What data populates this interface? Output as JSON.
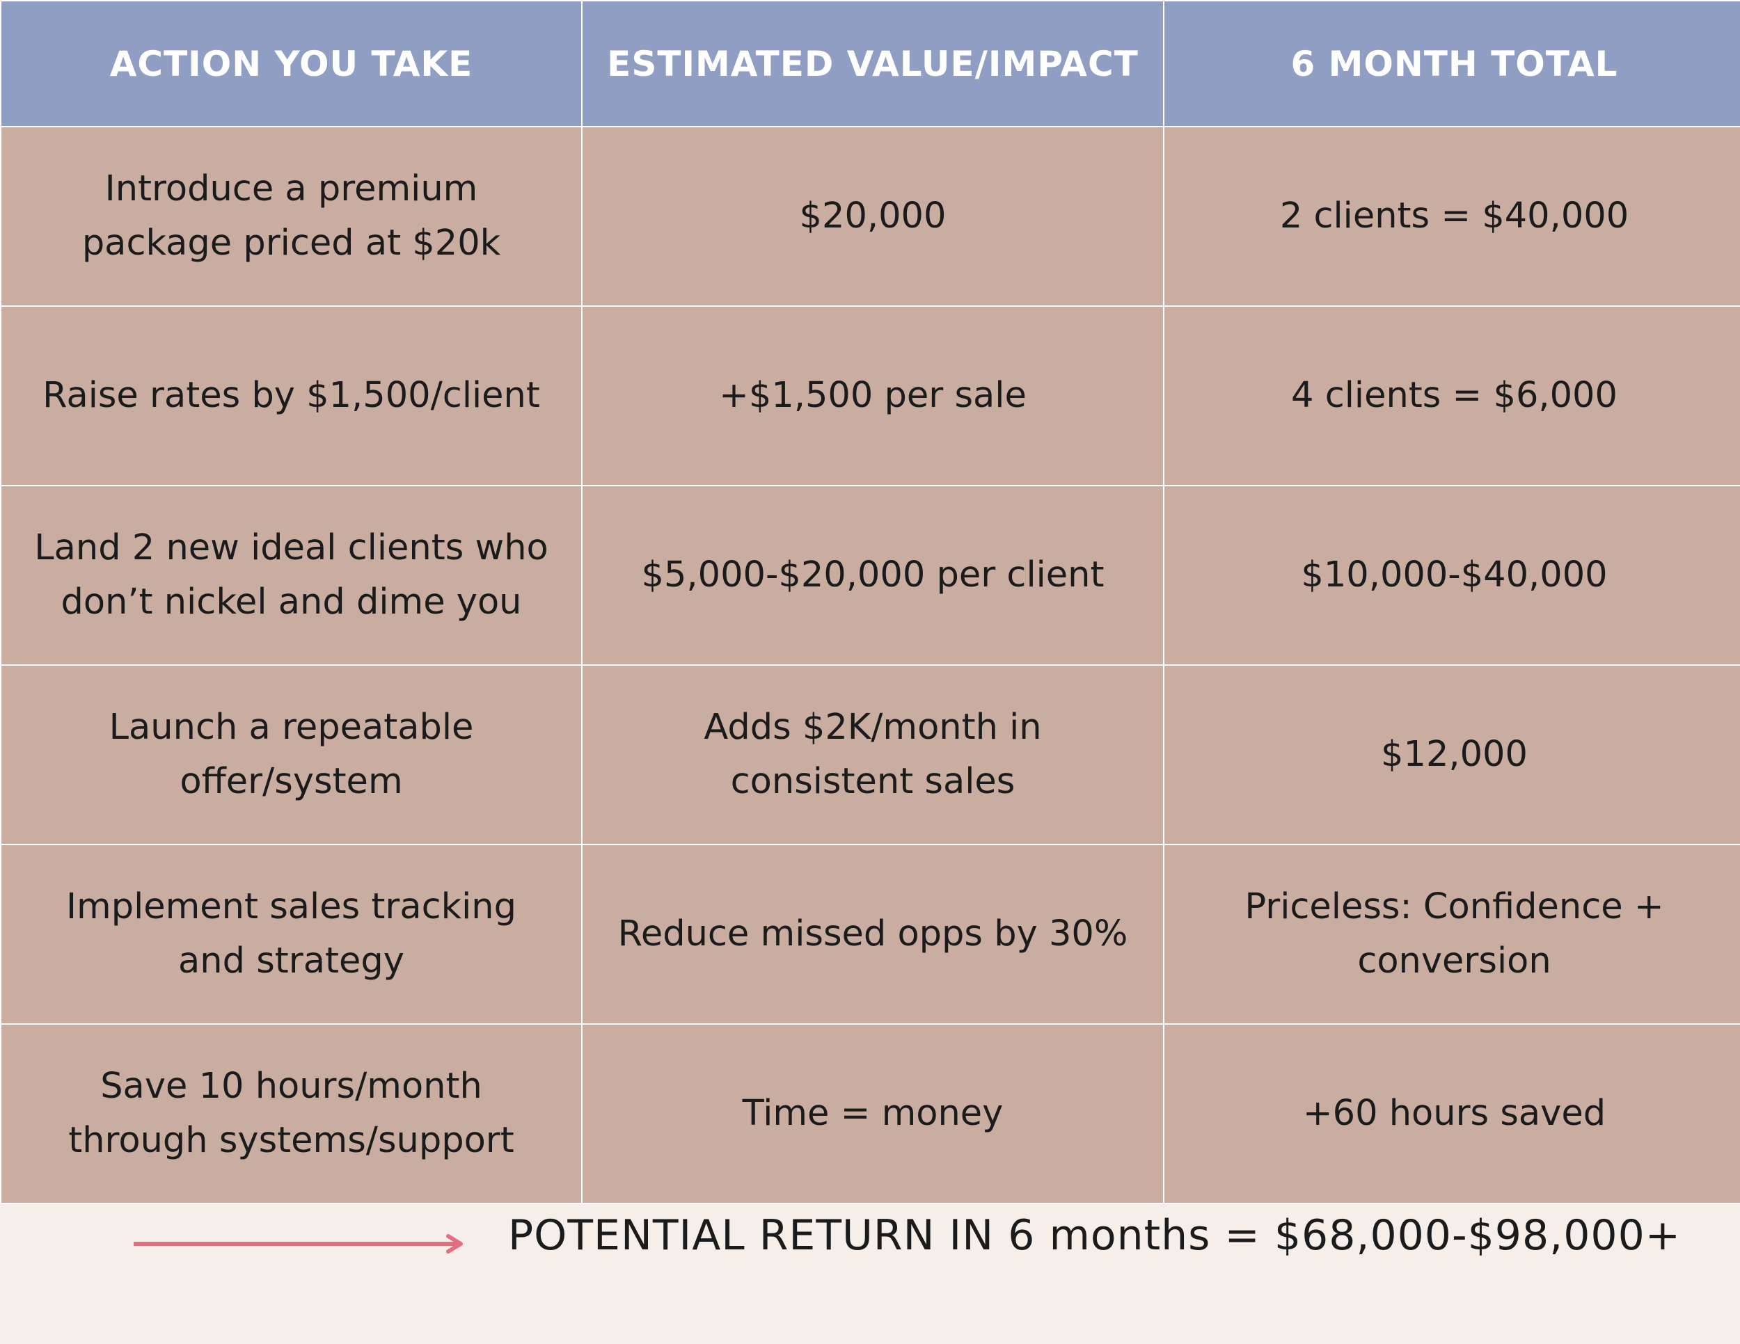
{
  "table": {
    "headers": [
      "ACTION YOU TAKE",
      "ESTIMATED VALUE/IMPACT",
      "6 MONTH TOTAL"
    ],
    "rows": [
      [
        "Introduce a premium package priced at $20k",
        "$20,000",
        "2 clients = $40,000"
      ],
      [
        "Raise rates by $1,500/client",
        "+$1,500 per sale",
        "4 clients = $6,000"
      ],
      [
        "Land 2 new ideal clients who don’t nickel and dime you",
        "$5,000-$20,000 per client",
        "$10,000-$40,000"
      ],
      [
        "Launch a repeatable offer/system",
        "Adds $2K/month in consistent sales",
        "$12,000"
      ],
      [
        "Implement sales tracking and strategy",
        "Reduce missed opps by 30%",
        "Priceless: Confidence + conversion"
      ],
      [
        "Save 10 hours/month through systems/support",
        "Time = money",
        "+60 hours saved"
      ]
    ]
  },
  "footer": {
    "summary": "POTENTIAL RETURN IN 6 months = $68,000-$98,000+",
    "arrow_icon": "right-arrow-icon",
    "arrow_color": "#e0707f"
  },
  "colors": {
    "header_bg": "#8f9ec2",
    "cell_bg": "#c9ada0",
    "page_bg": "#f5eee9"
  }
}
